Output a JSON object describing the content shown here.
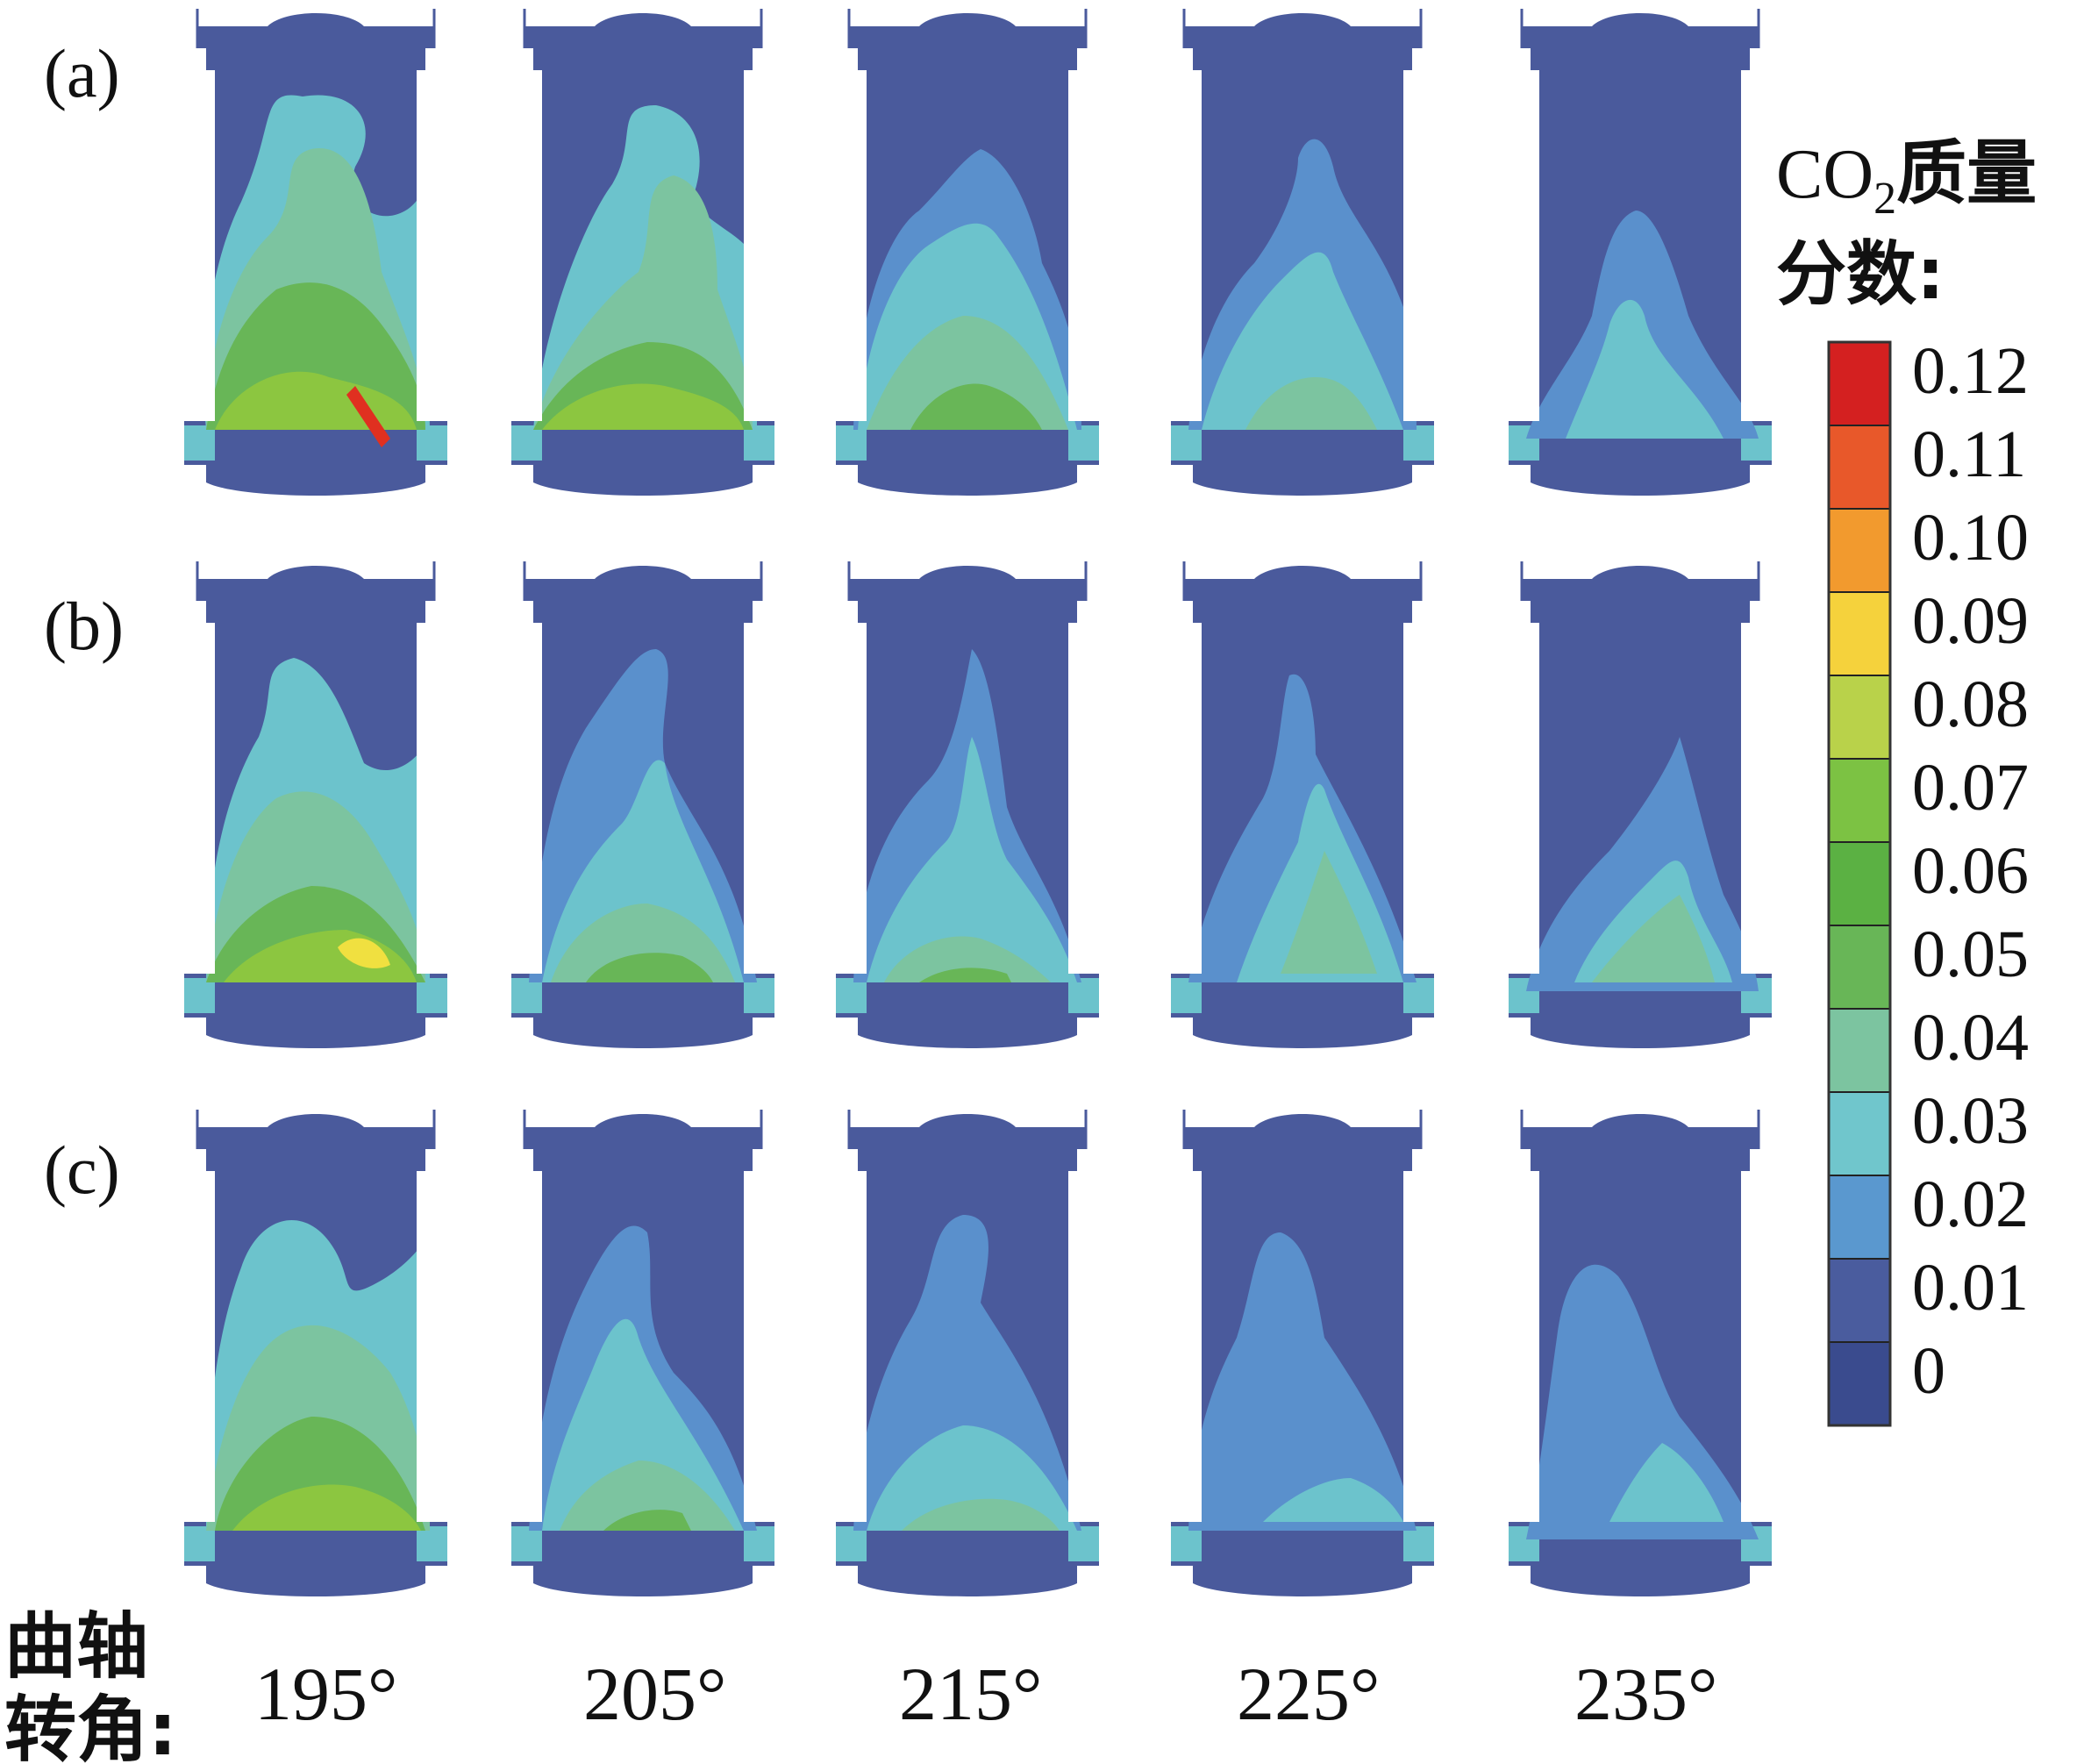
{
  "figure": {
    "rows": [
      {
        "label": "(a)"
      },
      {
        "label": "(b)"
      },
      {
        "label": "(c)"
      }
    ],
    "crank_angle_label": [
      "曲轴",
      "转角:"
    ],
    "angles": [
      "195°",
      "205°",
      "215°",
      "225°",
      "235°"
    ],
    "legend": {
      "title_prefix": "CO",
      "title_sub": "2",
      "title_suffix": "质量",
      "title_line2": "分数:",
      "ticks": [
        "0.12",
        "0.11",
        "0.10",
        "0.09",
        "0.08",
        "0.07",
        "0.06",
        "0.05",
        "0.04",
        "0.03",
        "0.02",
        "0.01",
        "0"
      ],
      "colors": [
        "#d42020",
        "#e8582a",
        "#f29a2e",
        "#f5d23c",
        "#b9d24a",
        "#7cc243",
        "#5bb143",
        "#68b657",
        "#7cc4a0",
        "#70c6cc",
        "#5a98cf",
        "#4a5c9e",
        "#3a4b8e"
      ]
    },
    "colors": {
      "background_fluid": "#4a5a9c",
      "level1": "#5a90cc",
      "level2": "#6cc3cc",
      "level3": "#7cc4a0",
      "level4": "#68b657",
      "level5": "#8cc640",
      "level6": "#f0e040",
      "level7": "#e03020"
    }
  }
}
